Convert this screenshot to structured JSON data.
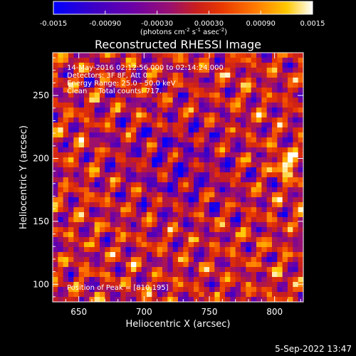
{
  "chart_data": {
    "type": "heatmap",
    "title": "Reconstructed RHESSI Image",
    "xlabel": "Heliocentric X (arcsec)",
    "ylabel": "Heliocentric Y (arcsec)",
    "xlim": [
      630,
      822
    ],
    "ylim": [
      86,
      284
    ],
    "x_ticks": [
      650,
      700,
      750,
      800
    ],
    "y_ticks": [
      100,
      150,
      200,
      250
    ],
    "colorbar": {
      "range": [
        -0.0015,
        0.0015
      ],
      "ticks": [
        "-0.0015",
        "-0.00090",
        "-0.00030",
        "0.00030",
        "0.00090",
        "0.0015"
      ],
      "unit_label": "(photons cm-2 s-1 asec-2)",
      "colormap": [
        "#0000ff",
        "#3a00c8",
        "#6a00a8",
        "#9a1070",
        "#c81e1e",
        "#e83800",
        "#ff7a00",
        "#ffc800",
        "#ffffff"
      ]
    },
    "annotations": {
      "time": "14-May-2016 02:12:56.000 to 02:14:24.000",
      "detectors": "Detectors: 3F 8F, Att 0",
      "energy": "Energy Range: 25.0 - 50.0 keV",
      "clean": "Clean     Total counts: 717.",
      "peak": "Position of Peak = [810,195]"
    },
    "peak_position": [
      810,
      195
    ],
    "image_size": [
      48,
      50
    ]
  },
  "footer": {
    "date": "5-Sep-2022 13:47"
  }
}
